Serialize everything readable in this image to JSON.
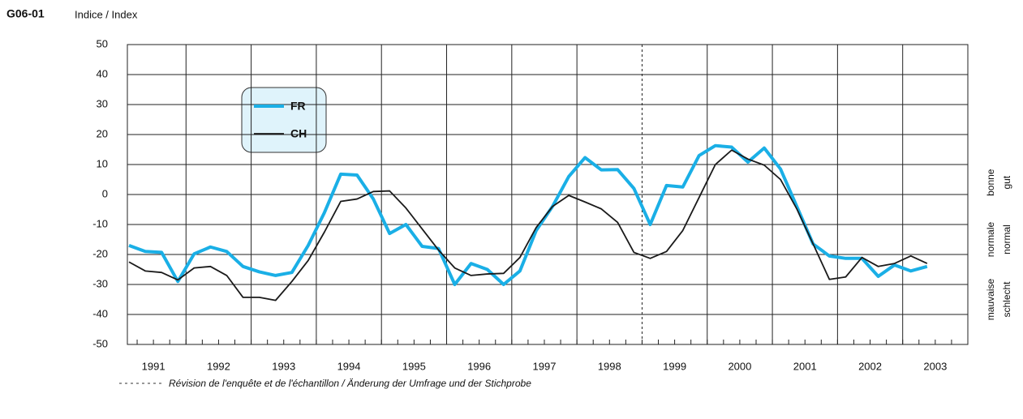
{
  "chart_data": {
    "type": "line",
    "code": "G06-01",
    "ylabel": "Indice / Index",
    "x": [
      1991.125,
      1991.375,
      1991.625,
      1991.875,
      1992.125,
      1992.375,
      1992.625,
      1992.875,
      1993.125,
      1993.375,
      1993.625,
      1993.875,
      1994.125,
      1994.375,
      1994.625,
      1994.875,
      1995.125,
      1995.375,
      1995.625,
      1995.875,
      1996.125,
      1996.375,
      1996.625,
      1996.875,
      1997.125,
      1997.375,
      1997.625,
      1997.875,
      1998.125,
      1998.375,
      1998.625,
      1998.875,
      1999.125,
      1999.375,
      1999.625,
      1999.875,
      2000.125,
      2000.375,
      2000.625,
      2000.875,
      2001.125,
      2001.375,
      2001.625,
      2001.875,
      2002.125,
      2002.375,
      2002.625,
      2002.875,
      2003.125,
      2003.375
    ],
    "series": [
      {
        "name": "FR",
        "color": "#1aafe6",
        "values": [
          -17,
          -19,
          -19.3,
          -29,
          -19.8,
          -17.5,
          -19,
          -24,
          -25.8,
          -27,
          -26,
          -17,
          -6,
          6.8,
          6.5,
          -1.5,
          -13,
          -10,
          -17.3,
          -18,
          -30,
          -23,
          -25,
          -30,
          -25.5,
          -12,
          -4,
          6,
          12.3,
          8.2,
          8.3,
          2,
          -10,
          3,
          2.5,
          13,
          16.3,
          15.8,
          10.8,
          15.5,
          8.5,
          -4,
          -16.5,
          -20.5,
          -21.3,
          -21.3,
          -27.3,
          -23.5,
          -25.5,
          -24
        ]
      },
      {
        "name": "CH",
        "color": "#1a1a1a",
        "values": [
          -22.5,
          -25.5,
          -26,
          -28.5,
          -24.5,
          -24,
          -27,
          -34.3,
          -34.3,
          -35.3,
          -29,
          -22,
          -12.5,
          -2.3,
          -1.5,
          1,
          1.2,
          -4.5,
          -11.5,
          -18.5,
          -24.5,
          -27,
          -26.5,
          -26.3,
          -21,
          -11,
          -4,
          -0.3,
          -2.5,
          -4.8,
          -9.3,
          -19.3,
          -21.3,
          -19,
          -12,
          -1,
          10,
          14.8,
          11.8,
          9.8,
          5,
          -4.8,
          -16.5,
          -28.3,
          -27.5,
          -21,
          -24,
          -23,
          -20.5,
          -23
        ]
      }
    ],
    "xlim": [
      1991.1,
      2004
    ],
    "xticks": [
      1991,
      1992,
      1993,
      1994,
      1995,
      1996,
      1997,
      1998,
      1999,
      2000,
      2001,
      2002,
      2003
    ],
    "ylim": [
      -50,
      50
    ],
    "yticks": [
      -50,
      -40,
      -30,
      -20,
      -10,
      0,
      10,
      20,
      30,
      40,
      50
    ],
    "grid": true,
    "revision_x": 1999,
    "annotation": "Révision de l'enquête et de l'échantillon / Änderung der Umfrage und der Stichprobe",
    "side_labels": [
      {
        "fr": "mauvaise",
        "de": "schlecht",
        "y": -35
      },
      {
        "fr": "normale",
        "de": "normal",
        "y": -15
      },
      {
        "fr": "bonne",
        "de": "gut",
        "y": 4
      }
    ]
  }
}
